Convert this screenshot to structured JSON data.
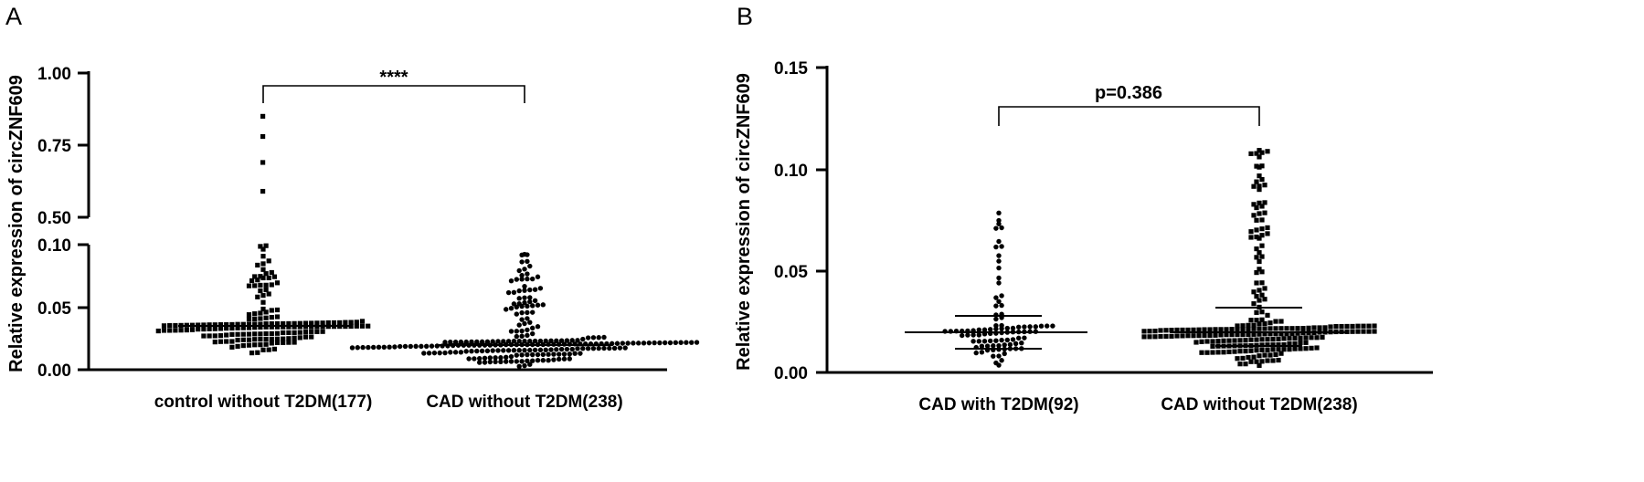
{
  "chart_data": [
    {
      "panel": "A",
      "type": "scatter",
      "ylabel": "Relative expression of circZNF609",
      "categories": [
        "control without T2DM(177)",
        "CAD without T2DM(238)"
      ],
      "y_axis": {
        "broken": true,
        "lower_segment": [
          0,
          0.1
        ],
        "upper_segment": [
          0.5,
          1.0
        ],
        "lower_ticks": [
          "0.00",
          "0.05",
          "0.10"
        ],
        "upper_ticks": [
          "0.50",
          "0.75",
          "1.00"
        ]
      },
      "groups": [
        {
          "n": 177,
          "median": 0.035,
          "outliers": [
            0.85,
            0.78,
            0.69,
            0.59
          ]
        },
        {
          "n": 238,
          "median": 0.02,
          "outliers": []
        }
      ],
      "comparison": {
        "label": "****",
        "between": [
          0,
          1
        ],
        "y": 0.95
      },
      "grid": false,
      "legend": "none"
    },
    {
      "panel": "B",
      "type": "scatter",
      "ylabel": "Relative expression of circZNF609",
      "categories": [
        "CAD with T2DM(92)",
        "CAD without T2DM(238)"
      ],
      "ylim": [
        0,
        0.15
      ],
      "y_ticks": [
        "0.00",
        "0.05",
        "0.10",
        "0.15"
      ],
      "groups": [
        {
          "n": 92,
          "median": 0.02,
          "q1": 0.012,
          "q3": 0.028
        },
        {
          "n": 238,
          "median": 0.02,
          "q1": 0.013,
          "q3": 0.032
        }
      ],
      "comparison": {
        "label": "p=0.386",
        "between": [
          0,
          1
        ],
        "y": 0.131
      },
      "grid": false,
      "legend": "none"
    }
  ]
}
